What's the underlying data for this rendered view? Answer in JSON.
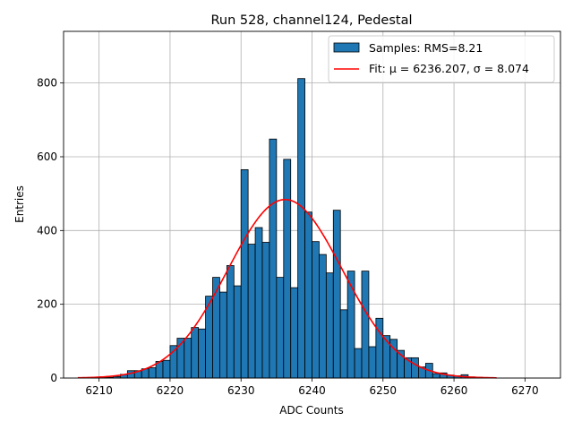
{
  "chart_data": {
    "type": "bar",
    "title": "Run 528, channel124, Pedestal",
    "xlabel": "ADC Counts",
    "ylabel": "Entries",
    "xlim": [
      6205,
      6275
    ],
    "ylim": [
      0,
      940
    ],
    "xticks": [
      6210,
      6220,
      6230,
      6240,
      6250,
      6260,
      6270
    ],
    "yticks": [
      0,
      200,
      400,
      600,
      800
    ],
    "grid": true,
    "legend_position": "top-right",
    "bin_width": 1,
    "series": [
      {
        "name": "Samples: RMS=8.21",
        "kind": "histogram",
        "color": "#1f77b4",
        "edge_color": "#000000",
        "bin_start": 6209,
        "counts": [
          1,
          2,
          2,
          4,
          10,
          20,
          20,
          25,
          28,
          45,
          48,
          88,
          108,
          108,
          137,
          133,
          222,
          273,
          233,
          305,
          250,
          565,
          363,
          408,
          368,
          648,
          273,
          593,
          245,
          812,
          450,
          370,
          335,
          285,
          455,
          185,
          290,
          80,
          290,
          85,
          162,
          115,
          105,
          75,
          55,
          55,
          30,
          40,
          12,
          14,
          8,
          6,
          9,
          3,
          2,
          1
        ]
      },
      {
        "name": "Fit: μ = 6236.207, σ = 8.074",
        "kind": "gaussian-fit",
        "color": "#ff0000",
        "mu": 6236.207,
        "sigma": 8.074,
        "amplitude": 484,
        "x_range": [
          6207,
          6266
        ]
      }
    ]
  }
}
